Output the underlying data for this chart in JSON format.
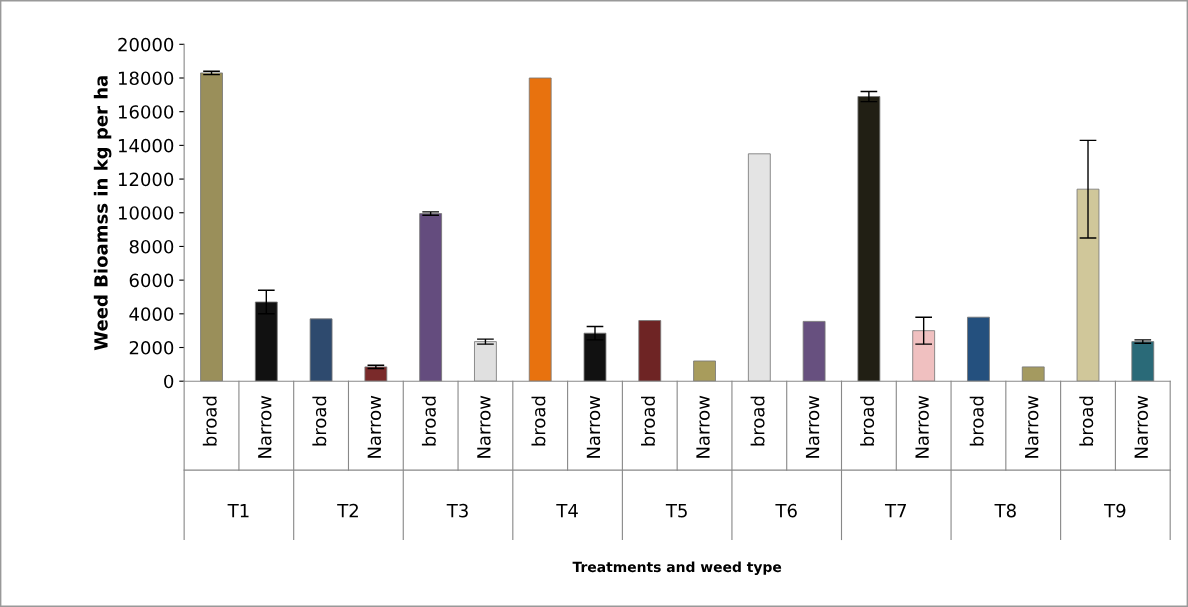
{
  "chart_data": {
    "type": "bar",
    "ylabel": "Weed Bioamss in kg per ha",
    "categories": [
      "broad",
      "Narrow",
      "broad",
      "Narrow",
      "broad",
      "Narrow",
      "broad",
      "Narrow",
      "broad",
      "Narrow",
      "broad",
      "Narrow",
      "broad",
      "Narrow",
      "broad",
      "Narrow",
      "broad",
      "Narrow"
    ],
    "values": [
      18300,
      4700,
      3700,
      850,
      9950,
      2350,
      18000,
      2850,
      3600,
      1200,
      13500,
      3550,
      16900,
      3000,
      3800,
      850,
      11400,
      2350
    ],
    "errors": [
      100,
      700,
      null,
      100,
      100,
      150,
      null,
      400,
      null,
      null,
      null,
      null,
      300,
      800,
      null,
      null,
      2900,
      100
    ],
    "colors": [
      "#9a8f5a",
      "#111111",
      "#2e4a6e",
      "#7a2a2a",
      "#644c7e",
      "#e0e0e0",
      "#e8720e",
      "#111111",
      "#6e2424",
      "#a89c5c",
      "#e4e4e4",
      "#67507f",
      "#211f14",
      "#f0c0c0",
      "#24507e",
      "#a49a60",
      "#d0c79a",
      "#2a6a78"
    ],
    "annotations": [
      "T1",
      "T2",
      "T3",
      "T4",
      "T5",
      "T6",
      "T7",
      "T8",
      "T9",
      "Treatments and weed type"
    ],
    "ylim": [
      0,
      20000
    ],
    "yticks": [
      0,
      2000,
      4000,
      6000,
      8000,
      10000,
      12000,
      14000,
      16000,
      18000,
      20000
    ],
    "grid": false,
    "legend": false
  }
}
